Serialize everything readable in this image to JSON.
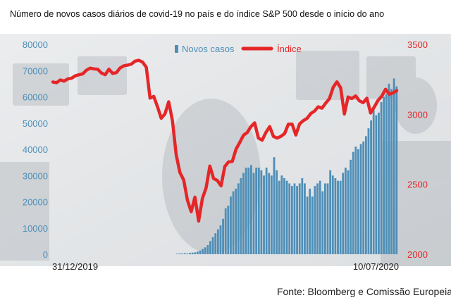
{
  "title": "Número de novos casos diários de covid-19 no país e do índice S&P 500 desde o início do ano",
  "source": "Fonte: Bloomberg e Comissão Europeia",
  "colors": {
    "bars": "#4f8fb7",
    "line": "#e52628",
    "left_axis": "#4f8fb7",
    "right_axis": "#e52628"
  },
  "chart_data": {
    "type": "bar+line",
    "x_start_label": "31/12/2019",
    "x_end_label": "10/07/2020",
    "left_axis": {
      "ticks": [
        0,
        10000,
        20000,
        30000,
        40000,
        50000,
        60000,
        70000,
        80000
      ],
      "range": [
        0,
        80000
      ]
    },
    "right_axis": {
      "ticks": [
        2000,
        2500,
        3000,
        3500
      ],
      "range": [
        2000,
        3500
      ]
    },
    "legend": [
      {
        "label": "Novos casos",
        "type": "bar"
      },
      {
        "label": "Índice",
        "type": "line"
      }
    ],
    "series": [
      {
        "name": "Novos casos",
        "type": "bar",
        "axis": "left",
        "values": [
          200,
          300,
          300,
          400,
          300,
          500,
          600,
          700,
          1000,
          1400,
          2000,
          2600,
          3500,
          5000,
          6500,
          8000,
          9500,
          11000,
          13500,
          17500,
          18500,
          22000,
          24000,
          25000,
          27000,
          29000,
          31000,
          33000,
          33000,
          34000,
          31000,
          33000,
          33000,
          32000,
          30000,
          33000,
          31000,
          30000,
          37000,
          32000,
          28000,
          30000,
          29000,
          28000,
          27000,
          26000,
          27000,
          26000,
          27000,
          29000,
          27000,
          22000,
          25000,
          22000,
          26000,
          27000,
          28000,
          24000,
          27000,
          27000,
          32000,
          30000,
          29000,
          28000,
          28000,
          31000,
          33000,
          32000,
          36000,
          39000,
          41000,
          40000,
          42000,
          43000,
          45000,
          48000,
          51000,
          55000,
          53000,
          54000,
          58000,
          60000,
          61000,
          65000,
          63000,
          67000,
          64000
        ]
      },
      {
        "name": "Índice",
        "type": "line",
        "axis": "right",
        "values": [
          3231,
          3226,
          3246,
          3237,
          3253,
          3258,
          3275,
          3283,
          3289,
          3316,
          3330,
          3325,
          3322,
          3295,
          3283,
          3323,
          3292,
          3298,
          3332,
          3347,
          3352,
          3359,
          3380,
          3386,
          3373,
          3337,
          3116,
          3128,
          3054,
          2972,
          3003,
          3090,
          2955,
          2712,
          2584,
          2530,
          2386,
          2304,
          2408,
          2237,
          2398,
          2475,
          2630,
          2541,
          2527,
          2489,
          2627,
          2660,
          2663,
          2750,
          2799,
          2850,
          2870,
          2912,
          2939,
          2830,
          2815,
          2870,
          2912,
          2842,
          2830,
          2842,
          2863,
          2929,
          2930,
          2852,
          2931,
          2955,
          2971,
          3005,
          3023,
          3054,
          3044,
          3080,
          3112,
          3193,
          3232,
          3190,
          3002,
          3124,
          3113,
          3131,
          3097,
          3083,
          3115,
          3009,
          3053,
          3100,
          3130,
          3179,
          3144,
          3153,
          3169
        ]
      }
    ]
  }
}
